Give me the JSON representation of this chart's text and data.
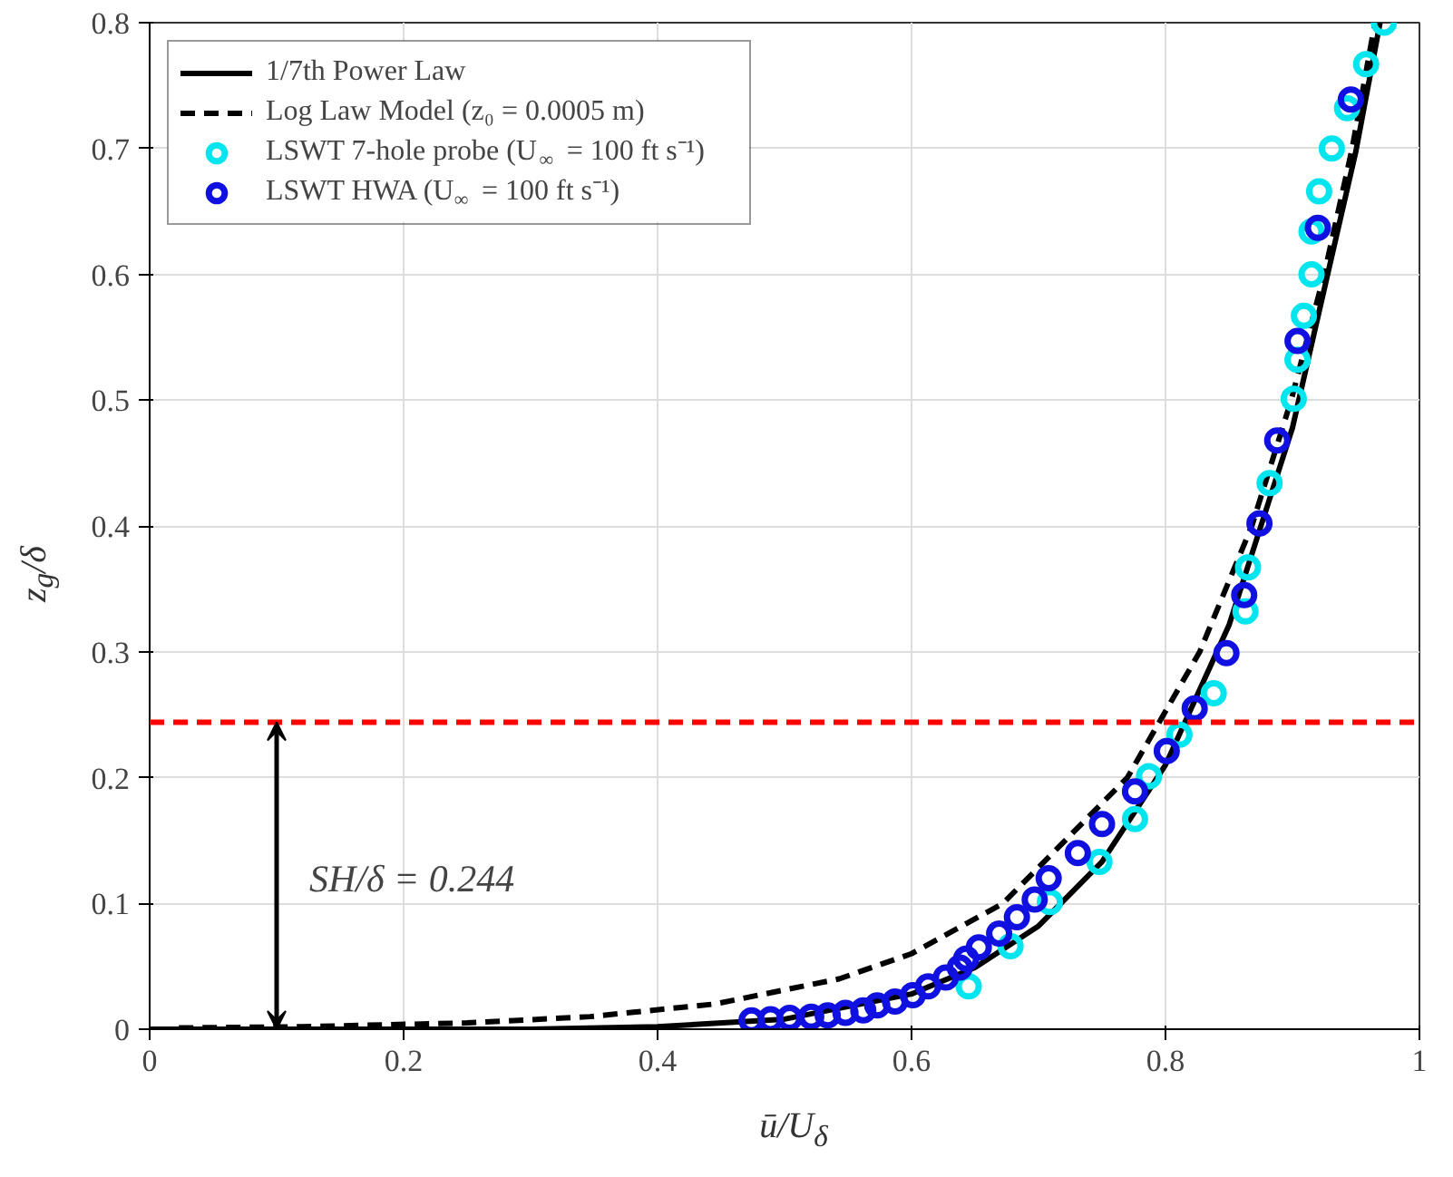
{
  "chart_data": {
    "type": "scatter",
    "xlabel": "ū/U$_{δ}$",
    "ylabel": "z$_{g}$/δ",
    "xlim": [
      0,
      1
    ],
    "ylim": [
      0,
      0.8
    ],
    "xticks": [
      0,
      0.2,
      0.4,
      0.6,
      0.8,
      1
    ],
    "yticks": [
      0,
      0.1,
      0.2,
      0.3,
      0.4,
      0.5,
      0.6,
      0.7,
      0.8
    ],
    "grid": true,
    "legend": "top left",
    "series": [
      {
        "name": "1/7th Power Law",
        "type": "line",
        "line_style": "solid",
        "color": "#000000",
        "x": [
          0,
          0.3,
          0.4,
          0.5,
          0.6,
          0.65,
          0.7,
          0.75,
          0.8,
          0.85,
          0.9,
          0.95,
          0.969
        ],
        "values": [
          0,
          0,
          0.002,
          0.008,
          0.028,
          0.049,
          0.082,
          0.133,
          0.21,
          0.321,
          0.478,
          0.698,
          0.8
        ]
      },
      {
        "name": "Log Law Model (z₀ = 0.0005 m)",
        "type": "line",
        "line_style": "dashed",
        "color": "#000000",
        "x": [
          0.023,
          0.12,
          0.25,
          0.347,
          0.445,
          0.543,
          0.6,
          0.672,
          0.77,
          0.827,
          0.868,
          0.899,
          0.925,
          0.947,
          0.965
        ],
        "values": [
          0.001,
          0.002,
          0.005,
          0.01,
          0.02,
          0.04,
          0.06,
          0.1,
          0.2,
          0.3,
          0.4,
          0.5,
          0.6,
          0.7,
          0.8
        ]
      },
      {
        "name": "LSWT 7-hole probe (U$_{∞}$ = 100 ft s⁻¹)",
        "marker": "circle",
        "color": "#00e5ee",
        "x": [
          0.972,
          0.958,
          0.943,
          0.931,
          0.921,
          0.915,
          0.915,
          0.909,
          0.904,
          0.901,
          0.882,
          0.865,
          0.863,
          0.838,
          0.811,
          0.787,
          0.776,
          0.748,
          0.709,
          0.678,
          0.645
        ],
        "values": [
          0.8,
          0.767,
          0.732,
          0.7,
          0.666,
          0.634,
          0.6,
          0.567,
          0.532,
          0.501,
          0.434,
          0.367,
          0.332,
          0.267,
          0.234,
          0.201,
          0.167,
          0.133,
          0.101,
          0.066,
          0.034
        ]
      },
      {
        "name": "LSWT HWA (U$_{∞}$ = 100 ft s⁻¹)",
        "marker": "circle",
        "color": "#1010e0",
        "x": [
          0.946,
          0.92,
          0.904,
          0.888,
          0.874,
          0.862,
          0.848,
          0.823,
          0.801,
          0.776,
          0.75,
          0.731,
          0.708,
          0.697,
          0.683,
          0.669,
          0.653,
          0.643,
          0.638,
          0.627,
          0.613,
          0.601,
          0.587,
          0.573,
          0.562,
          0.548,
          0.534,
          0.521,
          0.504,
          0.489,
          0.474
        ],
        "values": [
          0.739,
          0.637,
          0.547,
          0.468,
          0.402,
          0.345,
          0.299,
          0.255,
          0.221,
          0.189,
          0.163,
          0.14,
          0.12,
          0.103,
          0.089,
          0.076,
          0.065,
          0.056,
          0.049,
          0.041,
          0.034,
          0.027,
          0.022,
          0.019,
          0.015,
          0.013,
          0.011,
          0.01,
          0.009,
          0.008,
          0.007
        ]
      }
    ],
    "ref_lines": [
      {
        "axis": "y",
        "value": 0.244,
        "color": "#ff0000",
        "line_style": "dashed"
      }
    ],
    "annotations": [
      "SH/δ = 0.244"
    ]
  }
}
